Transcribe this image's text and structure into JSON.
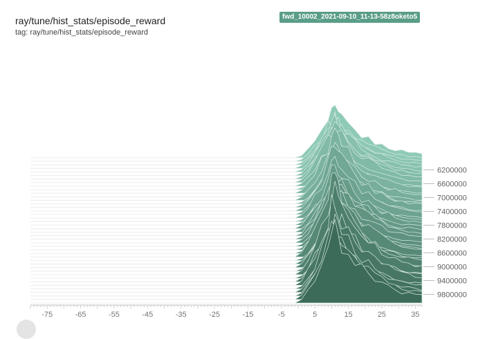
{
  "header": {
    "title": "ray/tune/hist_stats/episode_reward",
    "tag": "tag: ray/tune/hist_stats/episode_reward"
  },
  "run": {
    "name": "fwd_10002_2021-09-10_11-13-58z8oketo5",
    "color": "#5a9d88"
  },
  "chart_data": {
    "type": "histogram-offset",
    "title": "ray/tune/hist_stats/episode_reward",
    "x_ticks": [
      -75,
      -65,
      -55,
      -45,
      -35,
      -25,
      -15,
      -5,
      5,
      15,
      25,
      35
    ],
    "x_tick_labels": [
      "-75",
      "-65",
      "-55",
      "-45",
      "-35",
      "-25",
      "-15",
      "-5",
      "5",
      "15",
      "25",
      "35"
    ],
    "xlim": [
      -80,
      37
    ],
    "step_ticks": [
      6200000,
      6600000,
      7000000,
      7400000,
      7800000,
      8200000,
      8600000,
      9000000,
      9400000,
      9800000
    ],
    "step_tick_labels": [
      "6200000",
      "6600000",
      "7000000",
      "7400000",
      "7800000",
      "8200000",
      "8600000",
      "9000000",
      "9400000",
      "9800000"
    ],
    "step_range": [
      5850000,
      10050000
    ],
    "num_histograms": 42,
    "distribution_profile": {
      "x": [
        -1,
        1,
        3,
        5,
        7,
        9,
        10,
        11,
        12,
        13,
        15,
        17,
        19,
        21,
        23,
        25,
        27,
        29,
        31,
        33,
        35,
        37
      ],
      "density": [
        0.0,
        0.05,
        0.18,
        0.35,
        0.55,
        0.8,
        0.93,
        1.0,
        0.9,
        0.82,
        0.7,
        0.58,
        0.48,
        0.4,
        0.33,
        0.27,
        0.22,
        0.18,
        0.15,
        0.13,
        0.11,
        0.1
      ]
    },
    "colors": {
      "oldest": "#8fcab7",
      "newest": "#3d6b59"
    }
  }
}
